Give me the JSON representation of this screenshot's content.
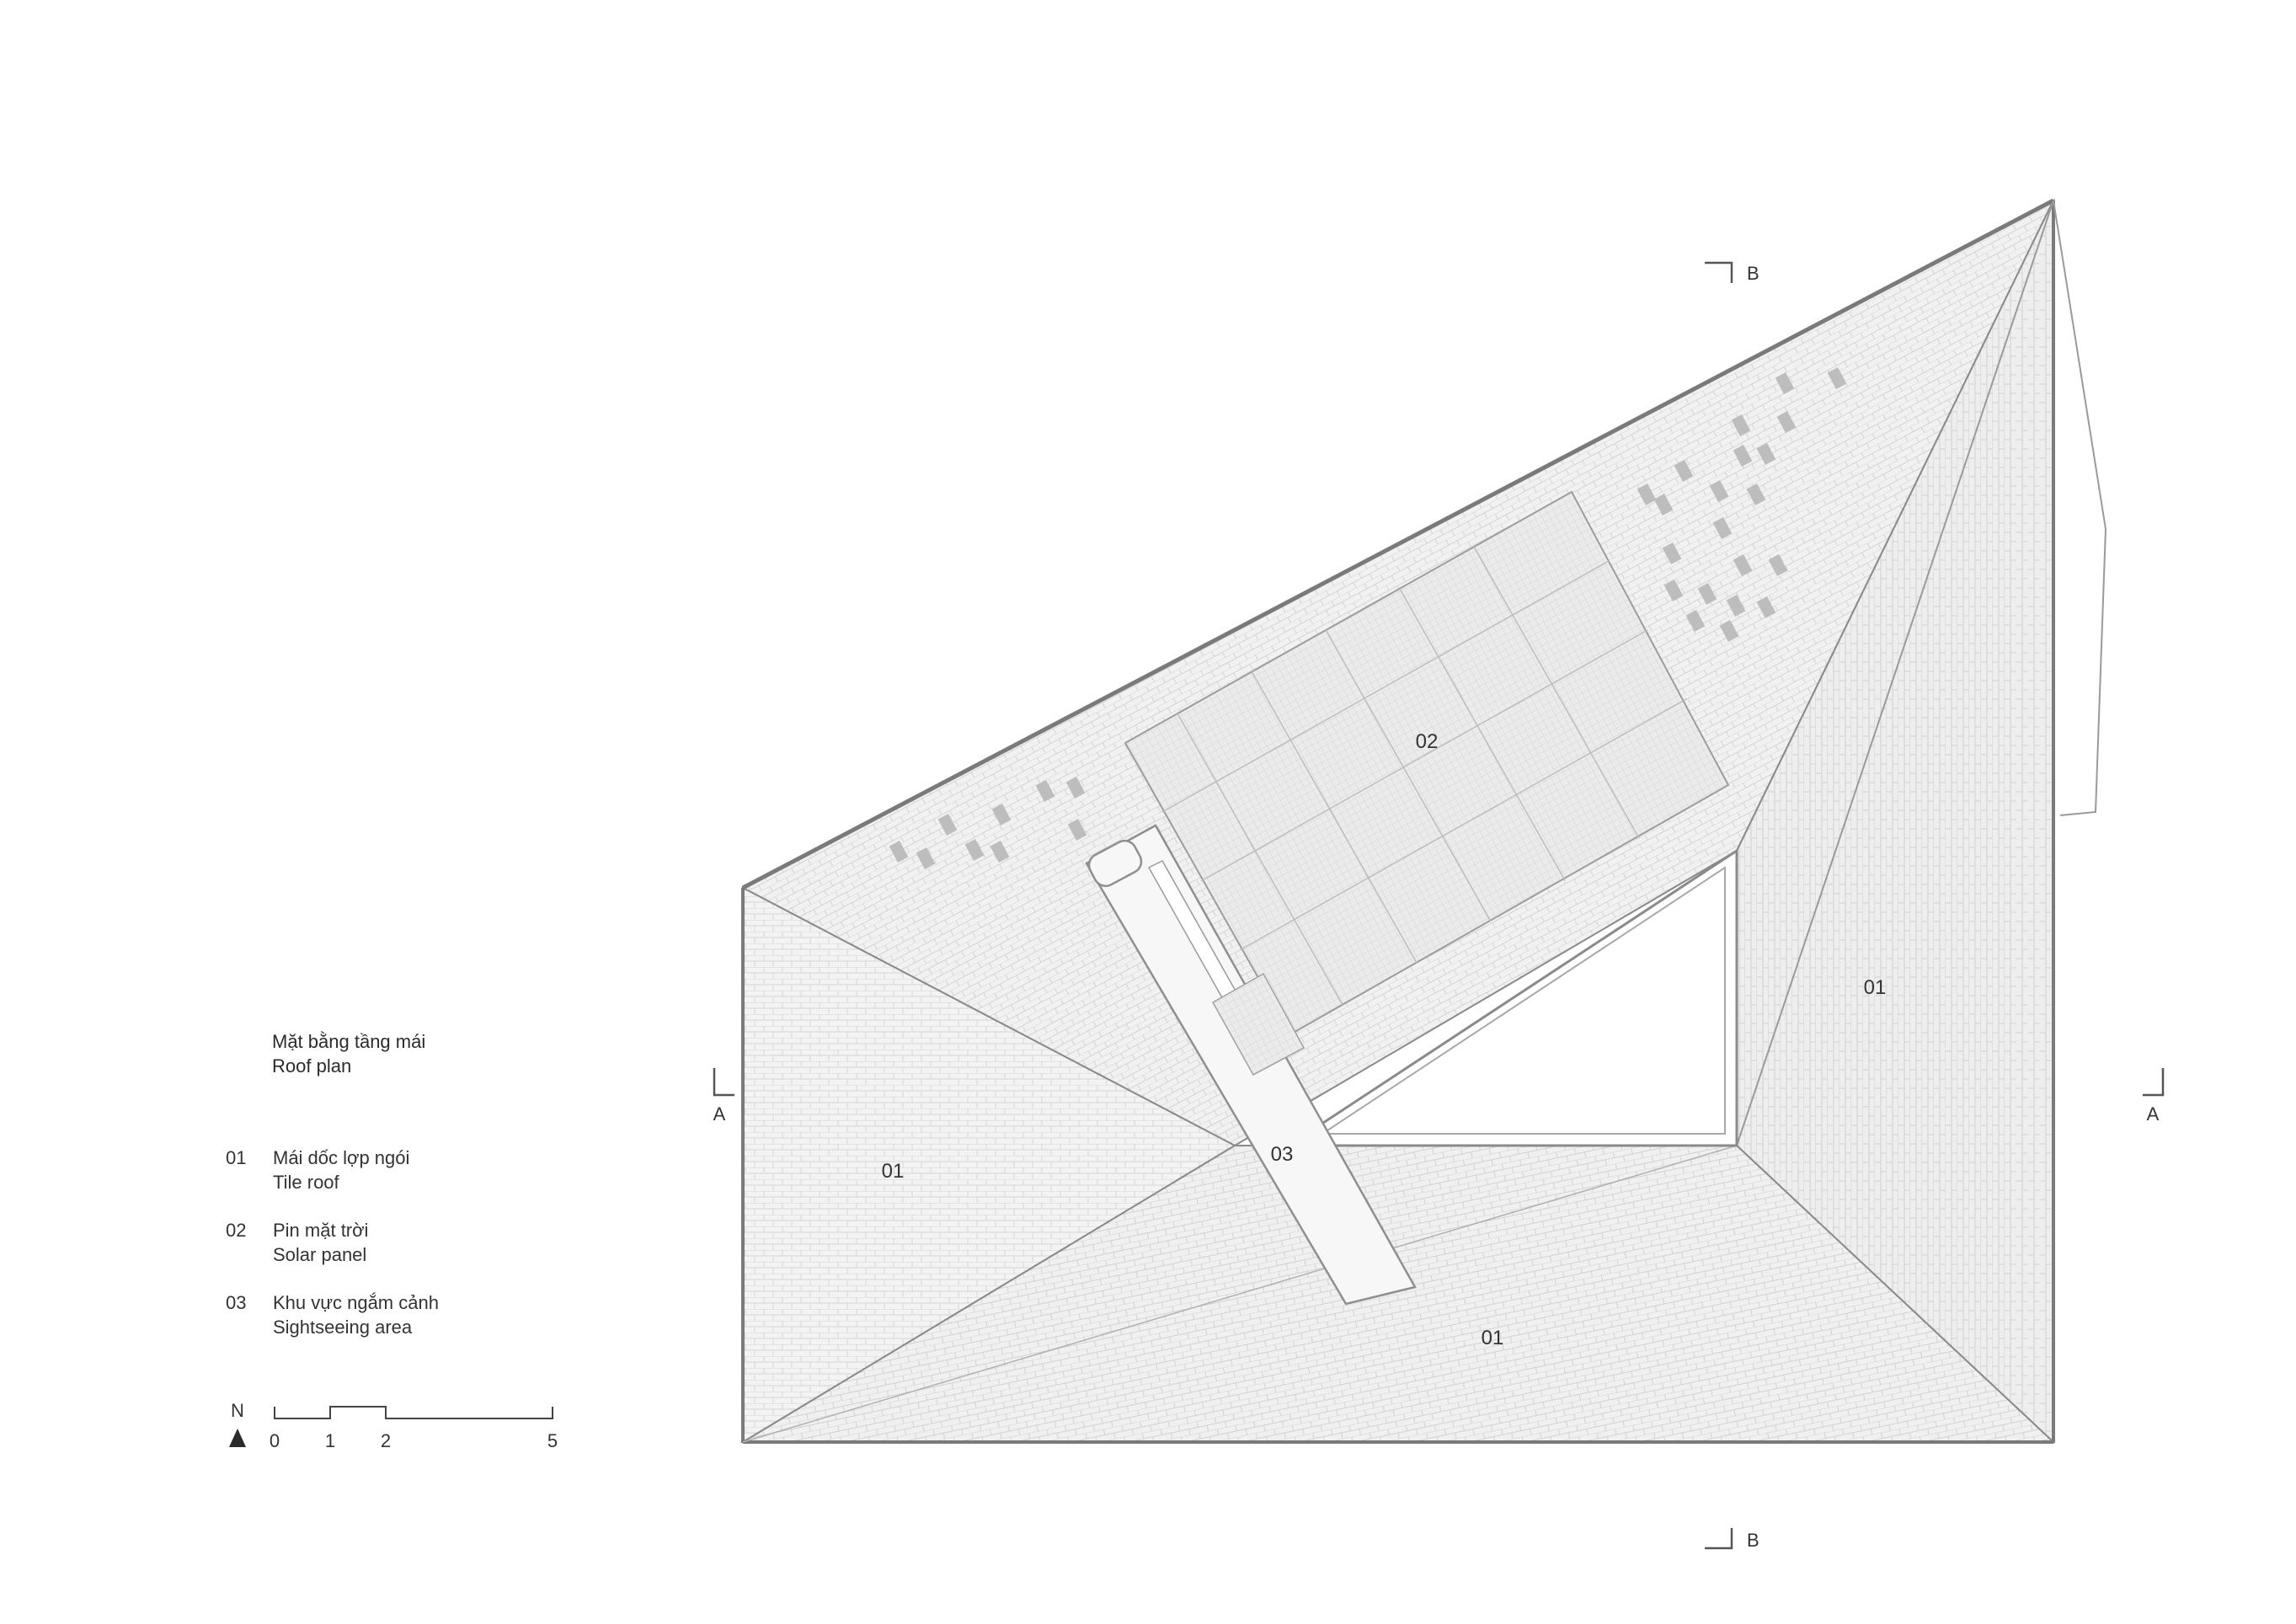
{
  "title": {
    "vi": "Mặt bằng tầng mái",
    "en": "Roof plan"
  },
  "legend": [
    {
      "num": "01",
      "vi": "Mái dốc lợp ngói",
      "en": "Tile roof"
    },
    {
      "num": "02",
      "vi": "Pin mặt trời",
      "en": "Solar panel"
    },
    {
      "num": "03",
      "vi": "Khu vực ngắm cảnh",
      "en": "Sightseeing area"
    }
  ],
  "north": {
    "label": "N"
  },
  "scale": {
    "ticks": [
      "0",
      "1",
      "2",
      "5"
    ]
  },
  "section_marks": {
    "a_left": "A",
    "a_right": "A",
    "b_top": "B",
    "b_bottom": "B"
  },
  "plan_labels": {
    "roof_west": "01",
    "roof_east": "01",
    "roof_south": "01",
    "solar": "02",
    "sightseeing": "03"
  },
  "colors": {
    "line": "#8a8a8a",
    "fill_tile": "#f2f2f2",
    "fill_solar": "#e9e9e9",
    "text": "#333333"
  }
}
